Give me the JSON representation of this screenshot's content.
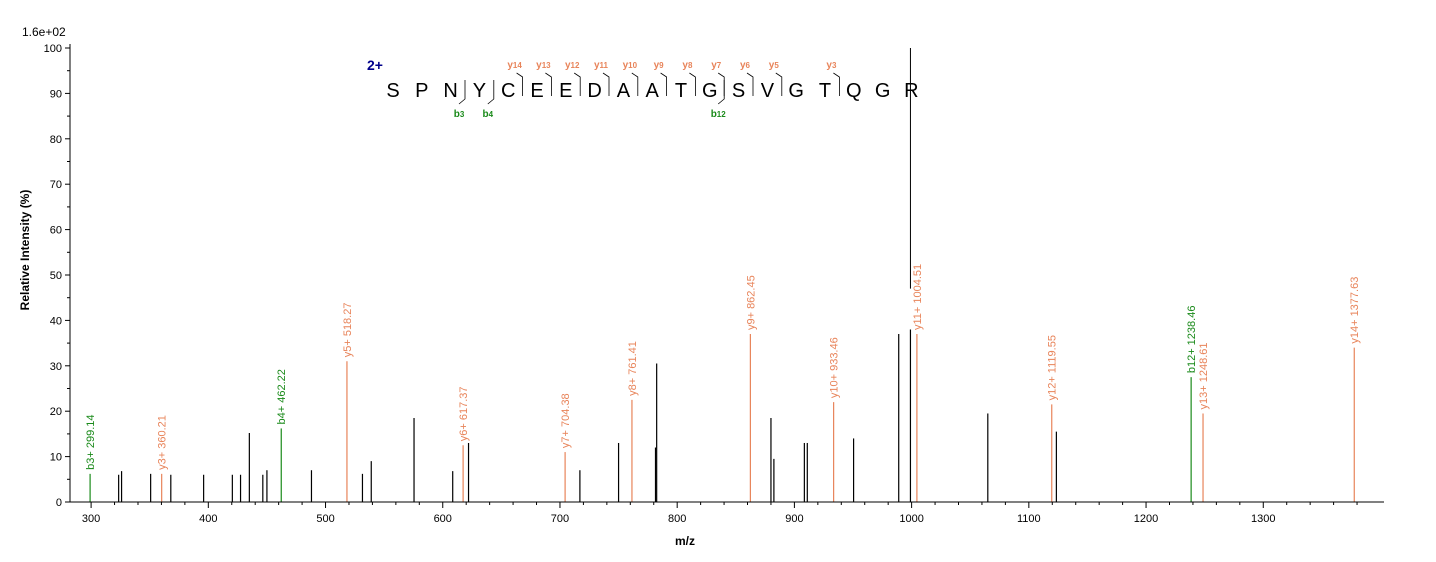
{
  "chart_data": {
    "type": "bar",
    "title": "",
    "scale_label": "1.6e+02",
    "xlabel": "m/z",
    "ylabel": "Relative   Intensity (%)",
    "xlim": [
      282,
      1403
    ],
    "ylim": [
      0,
      100
    ],
    "x_ticks": [
      300,
      400,
      500,
      600,
      700,
      800,
      900,
      1000,
      1100,
      1200,
      1300
    ],
    "y_ticks": [
      0,
      10,
      20,
      30,
      40,
      50,
      60,
      70,
      80,
      90,
      100
    ],
    "colors": {
      "unassigned": "#000000",
      "y": "#e8845a",
      "b": "#1a8a1a",
      "charge": "#00008b"
    },
    "peaks": [
      {
        "mz": 299.14,
        "intensity": 6.2,
        "type": "b",
        "label": "b3+ 299.14"
      },
      {
        "mz": 323.5,
        "intensity": 6.0,
        "type": "unassigned"
      },
      {
        "mz": 326.0,
        "intensity": 6.8,
        "type": "unassigned"
      },
      {
        "mz": 350.8,
        "intensity": 6.2,
        "type": "unassigned"
      },
      {
        "mz": 360.21,
        "intensity": 6.2,
        "type": "y",
        "label": "y3+ 360.21"
      },
      {
        "mz": 368.0,
        "intensity": 6.0,
        "type": "unassigned"
      },
      {
        "mz": 396.0,
        "intensity": 6.0,
        "type": "unassigned"
      },
      {
        "mz": 420.5,
        "intensity": 6.0,
        "type": "unassigned"
      },
      {
        "mz": 427.5,
        "intensity": 6.0,
        "type": "unassigned"
      },
      {
        "mz": 435.0,
        "intensity": 15.2,
        "type": "unassigned"
      },
      {
        "mz": 446.5,
        "intensity": 6.0,
        "type": "unassigned"
      },
      {
        "mz": 450.0,
        "intensity": 7.0,
        "type": "unassigned"
      },
      {
        "mz": 462.22,
        "intensity": 16.2,
        "type": "b",
        "label": "b4+ 462.22"
      },
      {
        "mz": 488.0,
        "intensity": 7.0,
        "type": "unassigned"
      },
      {
        "mz": 518.27,
        "intensity": 31.0,
        "type": "y",
        "label": "y5+ 518.27"
      },
      {
        "mz": 531.5,
        "intensity": 6.2,
        "type": "unassigned"
      },
      {
        "mz": 539.0,
        "intensity": 9.0,
        "type": "unassigned"
      },
      {
        "mz": 575.5,
        "intensity": 18.5,
        "type": "unassigned"
      },
      {
        "mz": 608.5,
        "intensity": 6.8,
        "type": "unassigned"
      },
      {
        "mz": 617.37,
        "intensity": 12.5,
        "type": "y",
        "label": "y6+ 617.37"
      },
      {
        "mz": 622.0,
        "intensity": 13.0,
        "type": "unassigned"
      },
      {
        "mz": 704.38,
        "intensity": 11.0,
        "type": "y",
        "label": "y7+ 704.38"
      },
      {
        "mz": 717.0,
        "intensity": 7.0,
        "type": "unassigned"
      },
      {
        "mz": 750.0,
        "intensity": 13.0,
        "type": "unassigned"
      },
      {
        "mz": 761.41,
        "intensity": 22.5,
        "type": "y",
        "label": "y8+ 761.41"
      },
      {
        "mz": 781.5,
        "intensity": 12.0,
        "type": "unassigned"
      },
      {
        "mz": 782.5,
        "intensity": 30.5,
        "type": "unassigned"
      },
      {
        "mz": 862.45,
        "intensity": 37.0,
        "type": "y",
        "label": "y9+ 862.45"
      },
      {
        "mz": 880.0,
        "intensity": 18.5,
        "type": "unassigned"
      },
      {
        "mz": 882.5,
        "intensity": 9.5,
        "type": "unassigned"
      },
      {
        "mz": 908.5,
        "intensity": 13.0,
        "type": "unassigned"
      },
      {
        "mz": 911.0,
        "intensity": 13.0,
        "type": "unassigned"
      },
      {
        "mz": 933.46,
        "intensity": 22.0,
        "type": "y",
        "label": "y10+ 933.46"
      },
      {
        "mz": 950.5,
        "intensity": 14.0,
        "type": "unassigned"
      },
      {
        "mz": 989.0,
        "intensity": 37.0,
        "type": "unassigned"
      },
      {
        "mz": 999.0,
        "intensity": 38.0,
        "type": "unassigned"
      },
      {
        "mz": 1004.51,
        "intensity": 37.0,
        "type": "y",
        "label": "y11+ 1004.51"
      },
      {
        "mz": 1065.0,
        "intensity": 19.5,
        "type": "unassigned"
      },
      {
        "mz": 1119.55,
        "intensity": 21.5,
        "type": "y",
        "label": "y12+ 1119.55"
      },
      {
        "mz": 1123.5,
        "intensity": 15.5,
        "type": "unassigned"
      },
      {
        "mz": 1238.46,
        "intensity": 27.5,
        "type": "b",
        "label": "b12+ 1238.46"
      },
      {
        "mz": 1248.61,
        "intensity": 19.5,
        "type": "y",
        "label": "y13+ 1248.61"
      },
      {
        "mz": 1377.63,
        "intensity": 34.0,
        "type": "y",
        "label": "y14+ 1377.63"
      }
    ],
    "precursor_line_mz": 999.0,
    "sequence": {
      "charge": "2+",
      "residues": [
        "S",
        "P",
        "N",
        "Y",
        "C",
        "E",
        "E",
        "D",
        "A",
        "A",
        "T",
        "G",
        "S",
        "V",
        "G",
        "T",
        "Q",
        "G",
        "R"
      ],
      "y_ions": [
        {
          "after": 5,
          "label": "y",
          "num": "14"
        },
        {
          "after": 6,
          "label": "y",
          "num": "13"
        },
        {
          "after": 7,
          "label": "y",
          "num": "12"
        },
        {
          "after": 8,
          "label": "y",
          "num": "11"
        },
        {
          "after": 9,
          "label": "y",
          "num": "10"
        },
        {
          "after": 10,
          "label": "y",
          "num": "9"
        },
        {
          "after": 11,
          "label": "y",
          "num": "8"
        },
        {
          "after": 12,
          "label": "y",
          "num": "7"
        },
        {
          "after": 13,
          "label": "y",
          "num": "6"
        },
        {
          "after": 14,
          "label": "y",
          "num": "5"
        },
        {
          "after": 16,
          "label": "y",
          "num": "3"
        }
      ],
      "b_ions": [
        {
          "after": 3,
          "label": "b",
          "num": "3"
        },
        {
          "after": 4,
          "label": "b",
          "num": "4"
        },
        {
          "after": 12,
          "label": "b",
          "num": "12"
        }
      ]
    }
  }
}
